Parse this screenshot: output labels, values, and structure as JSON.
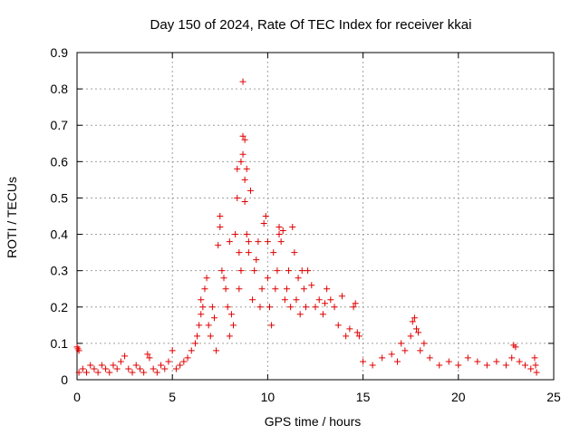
{
  "chart_data": {
    "type": "scatter",
    "title": "Day 150 of 2024, Rate Of TEC Index for receiver kkai",
    "xlabel": "GPS time / hours",
    "ylabel": "ROTI / TECUs",
    "xlim": [
      0,
      25
    ],
    "ylim": [
      0,
      0.9
    ],
    "xticks": [
      0,
      5,
      10,
      15,
      20,
      25
    ],
    "yticks": [
      0,
      0.1,
      0.2,
      0.3,
      0.4,
      0.5,
      0.6,
      0.7,
      0.8,
      0.9
    ],
    "xtick_labels": [
      "0",
      "5",
      "10",
      "15",
      "20",
      "25"
    ],
    "ytick_labels": [
      "0",
      "0.1",
      "0.2",
      "0.3",
      "0.4",
      "0.5",
      "0.6",
      "0.7",
      "0.8",
      "0.9"
    ],
    "grid": true,
    "marker": "plus",
    "color": "#e00000",
    "series": [
      {
        "points": [
          [
            0.0,
            0.09
          ],
          [
            0.05,
            0.085
          ],
          [
            0.1,
            0.08
          ],
          [
            0.1,
            0.02
          ],
          [
            0.3,
            0.03
          ],
          [
            0.5,
            0.02
          ],
          [
            0.7,
            0.04
          ],
          [
            0.9,
            0.03
          ],
          [
            1.1,
            0.02
          ],
          [
            1.3,
            0.04
          ],
          [
            1.5,
            0.03
          ],
          [
            1.7,
            0.02
          ],
          [
            1.9,
            0.04
          ],
          [
            2.1,
            0.03
          ],
          [
            2.3,
            0.05
          ],
          [
            2.5,
            0.065
          ],
          [
            2.7,
            0.03
          ],
          [
            2.9,
            0.02
          ],
          [
            3.1,
            0.04
          ],
          [
            3.3,
            0.03
          ],
          [
            3.5,
            0.02
          ],
          [
            3.7,
            0.07
          ],
          [
            3.8,
            0.06
          ],
          [
            4.0,
            0.03
          ],
          [
            4.2,
            0.02
          ],
          [
            4.4,
            0.04
          ],
          [
            4.6,
            0.03
          ],
          [
            4.8,
            0.05
          ],
          [
            5.0,
            0.08
          ],
          [
            5.2,
            0.03
          ],
          [
            5.4,
            0.04
          ],
          [
            5.6,
            0.05
          ],
          [
            5.8,
            0.06
          ],
          [
            6.0,
            0.08
          ],
          [
            6.2,
            0.1
          ],
          [
            6.3,
            0.12
          ],
          [
            6.4,
            0.15
          ],
          [
            6.5,
            0.18
          ],
          [
            6.5,
            0.22
          ],
          [
            6.6,
            0.2
          ],
          [
            6.7,
            0.25
          ],
          [
            6.8,
            0.28
          ],
          [
            6.9,
            0.15
          ],
          [
            7.0,
            0.12
          ],
          [
            7.1,
            0.2
          ],
          [
            7.2,
            0.17
          ],
          [
            7.3,
            0.08
          ],
          [
            7.4,
            0.37
          ],
          [
            7.5,
            0.45
          ],
          [
            7.5,
            0.42
          ],
          [
            7.6,
            0.3
          ],
          [
            7.7,
            0.28
          ],
          [
            7.8,
            0.25
          ],
          [
            7.9,
            0.2
          ],
          [
            8.0,
            0.12
          ],
          [
            8.0,
            0.38
          ],
          [
            8.1,
            0.18
          ],
          [
            8.2,
            0.15
          ],
          [
            8.3,
            0.4
          ],
          [
            8.4,
            0.58
          ],
          [
            8.4,
            0.5
          ],
          [
            8.5,
            0.25
          ],
          [
            8.5,
            0.35
          ],
          [
            8.6,
            0.3
          ],
          [
            8.6,
            0.6
          ],
          [
            8.7,
            0.67
          ],
          [
            8.7,
            0.62
          ],
          [
            8.7,
            0.82
          ],
          [
            8.8,
            0.55
          ],
          [
            8.8,
            0.66
          ],
          [
            8.8,
            0.49
          ],
          [
            8.9,
            0.58
          ],
          [
            8.9,
            0.4
          ],
          [
            9.0,
            0.38
          ],
          [
            9.0,
            0.35
          ],
          [
            9.1,
            0.52
          ],
          [
            9.2,
            0.22
          ],
          [
            9.3,
            0.3
          ],
          [
            9.4,
            0.33
          ],
          [
            9.5,
            0.38
          ],
          [
            9.6,
            0.2
          ],
          [
            9.7,
            0.25
          ],
          [
            9.8,
            0.43
          ],
          [
            9.9,
            0.45
          ],
          [
            10.0,
            0.38
          ],
          [
            10.0,
            0.28
          ],
          [
            10.1,
            0.2
          ],
          [
            10.2,
            0.15
          ],
          [
            10.3,
            0.35
          ],
          [
            10.4,
            0.25
          ],
          [
            10.5,
            0.3
          ],
          [
            10.6,
            0.42
          ],
          [
            10.6,
            0.4
          ],
          [
            10.7,
            0.38
          ],
          [
            10.8,
            0.41
          ],
          [
            10.9,
            0.22
          ],
          [
            11.0,
            0.25
          ],
          [
            11.1,
            0.3
          ],
          [
            11.2,
            0.2
          ],
          [
            11.3,
            0.42
          ],
          [
            11.4,
            0.35
          ],
          [
            11.5,
            0.22
          ],
          [
            11.6,
            0.28
          ],
          [
            11.7,
            0.18
          ],
          [
            11.8,
            0.3
          ],
          [
            11.9,
            0.25
          ],
          [
            12.0,
            0.2
          ],
          [
            12.1,
            0.3
          ],
          [
            12.3,
            0.26
          ],
          [
            12.5,
            0.2
          ],
          [
            12.7,
            0.22
          ],
          [
            12.9,
            0.18
          ],
          [
            13.0,
            0.21
          ],
          [
            13.1,
            0.25
          ],
          [
            13.3,
            0.22
          ],
          [
            13.5,
            0.2
          ],
          [
            13.7,
            0.15
          ],
          [
            13.9,
            0.23
          ],
          [
            14.1,
            0.12
          ],
          [
            14.3,
            0.14
          ],
          [
            14.5,
            0.2
          ],
          [
            14.6,
            0.21
          ],
          [
            14.7,
            0.13
          ],
          [
            14.8,
            0.12
          ],
          [
            15.0,
            0.05
          ],
          [
            15.5,
            0.04
          ],
          [
            16.0,
            0.06
          ],
          [
            16.5,
            0.07
          ],
          [
            16.8,
            0.05
          ],
          [
            17.0,
            0.1
          ],
          [
            17.2,
            0.08
          ],
          [
            17.5,
            0.12
          ],
          [
            17.6,
            0.16
          ],
          [
            17.7,
            0.17
          ],
          [
            17.8,
            0.14
          ],
          [
            17.9,
            0.13
          ],
          [
            18.0,
            0.08
          ],
          [
            18.2,
            0.1
          ],
          [
            18.5,
            0.06
          ],
          [
            19.0,
            0.04
          ],
          [
            19.5,
            0.05
          ],
          [
            20.0,
            0.04
          ],
          [
            20.5,
            0.06
          ],
          [
            21.0,
            0.05
          ],
          [
            21.5,
            0.04
          ],
          [
            22.0,
            0.05
          ],
          [
            22.5,
            0.04
          ],
          [
            22.8,
            0.06
          ],
          [
            22.9,
            0.095
          ],
          [
            23.0,
            0.09
          ],
          [
            23.2,
            0.05
          ],
          [
            23.5,
            0.04
          ],
          [
            23.8,
            0.03
          ],
          [
            24.0,
            0.06
          ],
          [
            24.05,
            0.04
          ],
          [
            24.1,
            0.02
          ]
        ]
      }
    ]
  }
}
